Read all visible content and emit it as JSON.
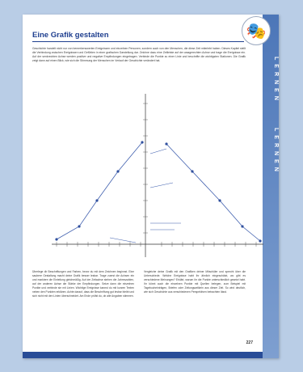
{
  "title": "Eine Grafik gestalten",
  "side_band": [
    "LERNEN",
    "LERNEN"
  ],
  "logo_icon": "theater-masks-icon",
  "intro": "Geschichte handelt nicht nur von bemerkenswerten Ereignissen und einzelnen Personen, sondern auch von den Menschen, die diese Zeit miterlebt haben. Dieses Kapitel stellt die Verbindung zwischen Ereignissen und Gefühlen in einer grafischen Darstellung dar. Zeichne dazu eine Zeitleiste auf der waagerechten Achse und trage die Ereignisse ein. Auf der senkrechten Achse werden positive und negative Empfindungen eingetragen. Verbinde die Punkte zu einer Linie und beschrifte die wichtigsten Stationen. Die Grafik zeigt dann auf einen Blick, wie sich die Stimmung der Menschen im Verlauf der Geschichte verändert hat.",
  "col_left": "Überlege dir Beschriftungen und Farben, bevor du mit dem Zeichnen beginnst. Eine saubere Gestaltung macht deine Grafik besser lesbar. Trage zuerst die Achsen ein und markiere die Einteilung gleichmäßig. Auf der Zeitachse stehen die Jahreszahlen, auf der anderen Achse die Stärke der Empfindungen. Setze dann die einzelnen Punkte und verbinde sie mit Linien. Wichtige Ereignisse kannst du mit kurzen Texten neben den Punkten erklären. Achte darauf, dass die Beschriftung gut lesbar bleibt und sich nicht mit den Linien überschneidet. Am Ende prüfst du, ob alle Angaben stimmen.",
  "col_right": "Vergleiche deine Grafik mit den Grafiken deiner Mitschüler und sprecht über die Unterschiede. Welche Ereignisse habt ihr ähnlich eingeschätzt, wo gibt es verschiedene Meinungen? Erklärt, warum ihr die Punkte unterschiedlich gesetzt habt. Ihr könnt auch die einzelnen Punkte mit Quellen belegen, zum Beispiel mit Tagebucheinträgen, Briefen oder Zeitungsartikeln aus dieser Zeit. So wird deutlich, wie sich Geschichte aus verschiedenen Perspektiven betrachten lässt.",
  "page_number": "227",
  "colors": {
    "accent": "#1f3f8f",
    "band": "#4c76b8",
    "line": "#3f5fae"
  }
}
